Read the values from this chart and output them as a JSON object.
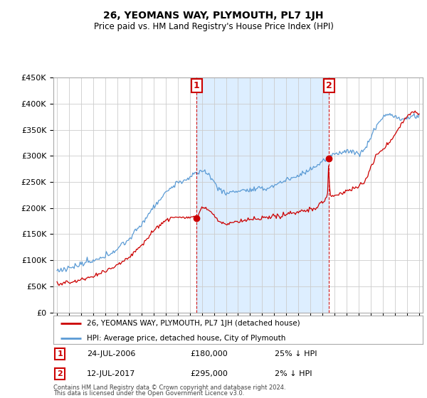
{
  "title": "26, YEOMANS WAY, PLYMOUTH, PL7 1JH",
  "subtitle": "Price paid vs. HM Land Registry's House Price Index (HPI)",
  "legend_line1": "26, YEOMANS WAY, PLYMOUTH, PL7 1JH (detached house)",
  "legend_line2": "HPI: Average price, detached house, City of Plymouth",
  "annotation1_date": "24-JUL-2006",
  "annotation1_price": "£180,000",
  "annotation1_hpi": "25% ↓ HPI",
  "annotation1_year": 2006.56,
  "annotation1_value": 180000,
  "annotation2_date": "12-JUL-2017",
  "annotation2_price": "£295,000",
  "annotation2_hpi": "2% ↓ HPI",
  "annotation2_year": 2017.53,
  "annotation2_value": 295000,
  "footnote1": "Contains HM Land Registry data © Crown copyright and database right 2024.",
  "footnote2": "This data is licensed under the Open Government Licence v3.0.",
  "ylim": [
    0,
    450000
  ],
  "yticks": [
    0,
    50000,
    100000,
    150000,
    200000,
    250000,
    300000,
    350000,
    400000,
    450000
  ],
  "plot_bg_color": "#ffffff",
  "line_red_color": "#cc0000",
  "line_blue_color": "#5b9bd5",
  "shade_color": "#ddeeff",
  "grid_color": "#cccccc",
  "ann_box_color": "#cc0000"
}
